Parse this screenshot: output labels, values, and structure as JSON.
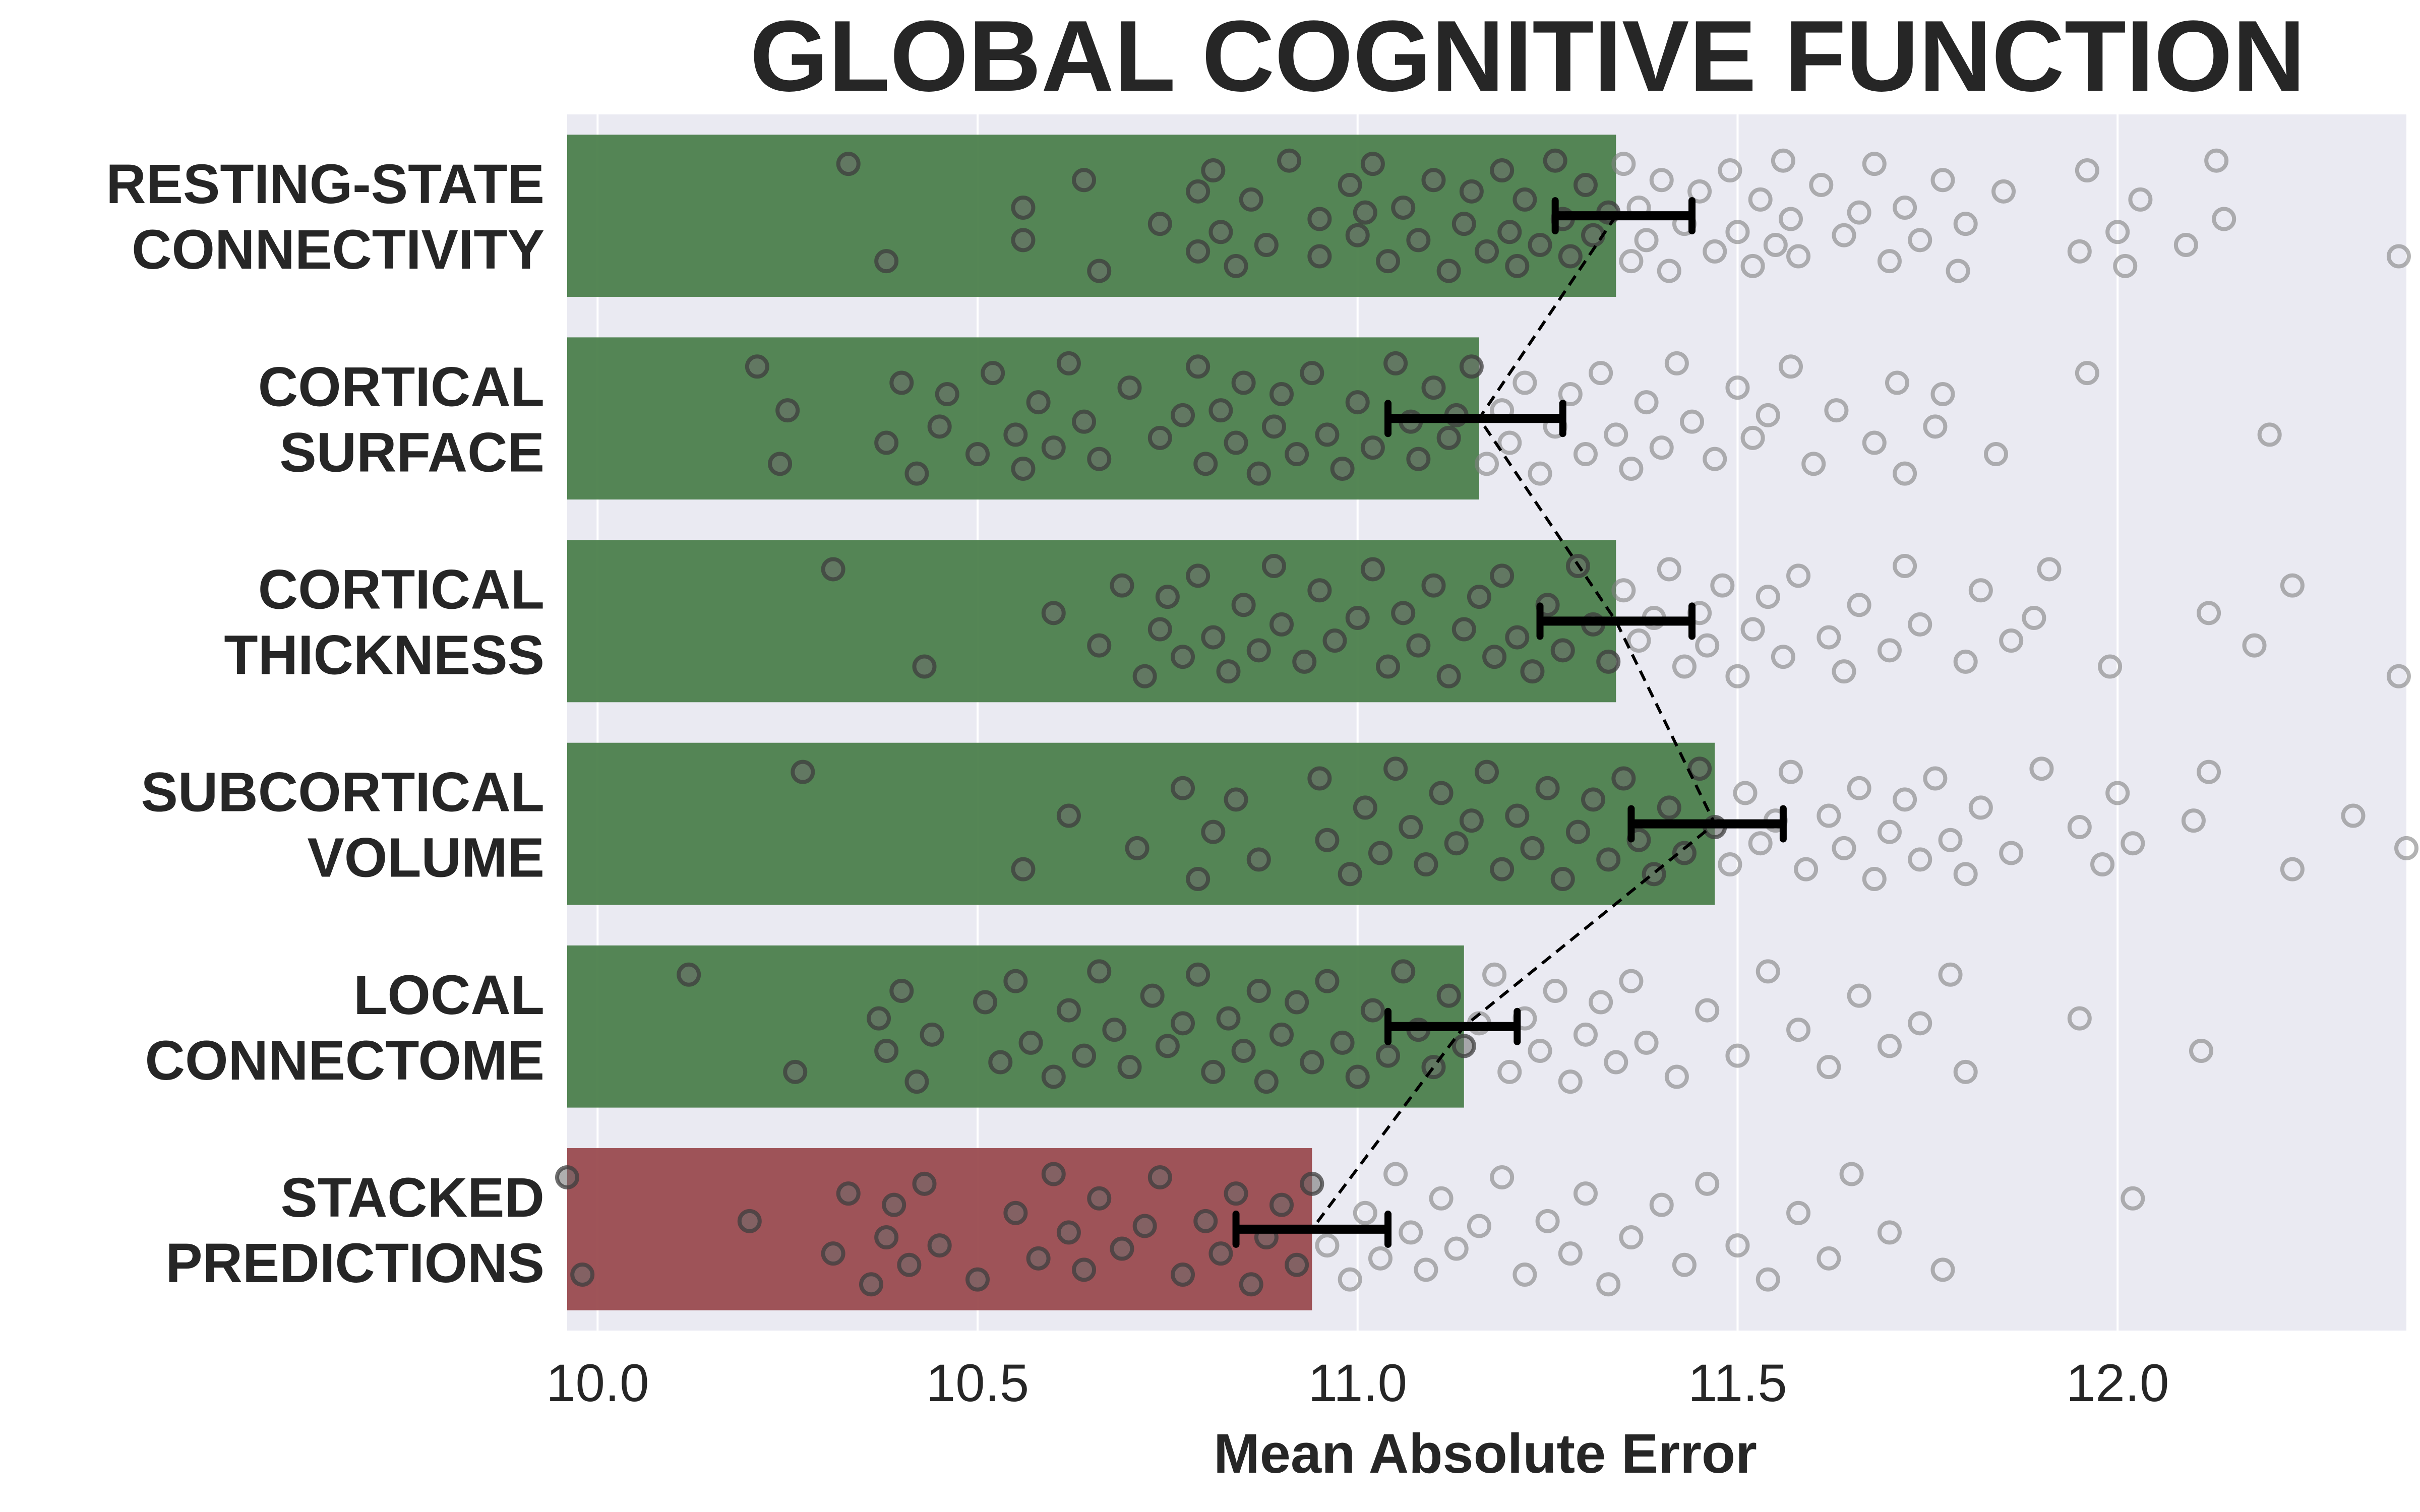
{
  "chart_data": {
    "type": "bar",
    "orientation": "horizontal",
    "title": "GLOBAL COGNITIVE FUNCTION",
    "xlabel": "Mean Absolute Error",
    "ylabel": "",
    "xlim": [
      9.96,
      12.38
    ],
    "xticks": [
      "10.0",
      "10.5",
      "11.0",
      "11.5",
      "12.0"
    ],
    "xtick_values": [
      10.0,
      10.5,
      11.0,
      11.5,
      12.0
    ],
    "grid": true,
    "background": "#eaeaf2",
    "categories": [
      [
        "RESTING-STATE",
        "CONNECTIVITY"
      ],
      [
        "CORTICAL",
        "SURFACE"
      ],
      [
        "CORTICAL",
        "THICKNESS"
      ],
      [
        "SUBCORTICAL",
        "VOLUME"
      ],
      [
        "LOCAL",
        "CONNECTOME"
      ],
      [
        "STACKED",
        "PREDICTIONS"
      ]
    ],
    "values": [
      11.34,
      11.16,
      11.34,
      11.47,
      11.14,
      10.94
    ],
    "bar_colors": [
      "#4c7f4c",
      "#4c7f4c",
      "#4c7f4c",
      "#4c7f4c",
      "#4c7f4c",
      "#9a4b4f"
    ],
    "error_bars": [
      [
        11.26,
        11.44
      ],
      [
        11.04,
        11.27
      ],
      [
        11.24,
        11.44
      ],
      [
        11.36,
        11.56
      ],
      [
        11.04,
        11.21
      ],
      [
        10.84,
        11.04
      ]
    ],
    "error_line_color": "#000000",
    "point_stroke": "#808080",
    "point_stroke_inside": "#3d3d3d",
    "connector": "dashed line joining bar ends",
    "point_offsets": [
      -0.32,
      0.28,
      -0.05,
      0.15,
      -0.22,
      0.34,
      0.05,
      -0.15,
      0.22,
      -0.28,
      0.1,
      0.31,
      -0.1,
      0.18,
      -0.34,
      0.02,
      0.25,
      -0.19,
      0.12,
      -0.02
    ],
    "points": [
      [
        10.33,
        10.38,
        10.56,
        10.56,
        10.64,
        10.66,
        10.74,
        10.79,
        10.79,
        10.81,
        10.82,
        10.84,
        10.86,
        10.88,
        10.91,
        10.95,
        10.95,
        10.99,
        11.0,
        11.01,
        11.02,
        11.04,
        11.06,
        11.08,
        11.1,
        11.12,
        11.14,
        11.15,
        11.17,
        11.19,
        11.2,
        11.21,
        11.22,
        11.24,
        11.26,
        11.27,
        11.28,
        11.3,
        11.31,
        11.33,
        11.35,
        11.36,
        11.37,
        11.38,
        11.4,
        11.41,
        11.43,
        11.45,
        11.47,
        11.49,
        11.5,
        11.52,
        11.53,
        11.55,
        11.56,
        11.57,
        11.58,
        11.61,
        11.64,
        11.66,
        11.68,
        11.7,
        11.72,
        11.74,
        11.77,
        11.79,
        11.8,
        11.85,
        11.95,
        11.96,
        12.0,
        12.01,
        12.03,
        12.09,
        12.13,
        12.14,
        12.37
      ],
      [
        10.21,
        10.24,
        10.25,
        10.38,
        10.4,
        10.42,
        10.45,
        10.46,
        10.5,
        10.52,
        10.55,
        10.56,
        10.58,
        10.6,
        10.62,
        10.64,
        10.66,
        10.7,
        10.74,
        10.77,
        10.79,
        10.8,
        10.82,
        10.84,
        10.85,
        10.87,
        10.89,
        10.9,
        10.92,
        10.94,
        10.96,
        10.98,
        11.0,
        11.02,
        11.05,
        11.07,
        11.08,
        11.1,
        11.12,
        11.13,
        11.15,
        11.17,
        11.19,
        11.2,
        11.22,
        11.24,
        11.26,
        11.28,
        11.3,
        11.32,
        11.34,
        11.36,
        11.38,
        11.4,
        11.42,
        11.44,
        11.47,
        11.5,
        11.52,
        11.54,
        11.57,
        11.6,
        11.63,
        11.68,
        11.71,
        11.72,
        11.76,
        11.77,
        11.84,
        11.96,
        12.2
      ],
      [
        10.31,
        10.43,
        10.6,
        10.66,
        10.69,
        10.72,
        10.74,
        10.75,
        10.77,
        10.79,
        10.81,
        10.83,
        10.85,
        10.87,
        10.89,
        10.9,
        10.93,
        10.95,
        10.97,
        11.0,
        11.02,
        11.04,
        11.06,
        11.08,
        11.1,
        11.12,
        11.14,
        11.16,
        11.18,
        11.19,
        11.21,
        11.23,
        11.25,
        11.27,
        11.29,
        11.31,
        11.33,
        11.35,
        11.37,
        11.39,
        11.41,
        11.43,
        11.45,
        11.46,
        11.48,
        11.5,
        11.52,
        11.54,
        11.56,
        11.58,
        11.62,
        11.64,
        11.66,
        11.7,
        11.72,
        11.74,
        11.8,
        11.82,
        11.86,
        11.89,
        11.91,
        11.99,
        12.12,
        12.18,
        12.23,
        12.37
      ],
      [
        10.27,
        10.56,
        10.62,
        10.71,
        10.77,
        10.79,
        10.81,
        10.84,
        10.87,
        10.95,
        10.96,
        10.99,
        11.01,
        11.03,
        11.05,
        11.07,
        11.09,
        11.11,
        11.13,
        11.15,
        11.17,
        11.19,
        11.21,
        11.23,
        11.25,
        11.27,
        11.29,
        11.31,
        11.33,
        11.35,
        11.37,
        11.39,
        11.41,
        11.43,
        11.45,
        11.47,
        11.49,
        11.51,
        11.53,
        11.55,
        11.57,
        11.59,
        11.62,
        11.64,
        11.66,
        11.68,
        11.7,
        11.72,
        11.74,
        11.76,
        11.78,
        11.8,
        11.82,
        11.86,
        11.9,
        11.95,
        11.98,
        12.0,
        12.02,
        12.1,
        12.12,
        12.23,
        12.31,
        12.38
      ],
      [
        10.12,
        10.26,
        10.37,
        10.38,
        10.4,
        10.42,
        10.44,
        10.51,
        10.53,
        10.55,
        10.57,
        10.6,
        10.62,
        10.64,
        10.66,
        10.68,
        10.7,
        10.73,
        10.75,
        10.77,
        10.79,
        10.81,
        10.83,
        10.85,
        10.87,
        10.88,
        10.9,
        10.92,
        10.94,
        10.96,
        10.98,
        11.0,
        11.02,
        11.04,
        11.06,
        11.08,
        11.1,
        11.12,
        11.14,
        11.16,
        11.18,
        11.2,
        11.22,
        11.24,
        11.26,
        11.28,
        11.3,
        11.32,
        11.34,
        11.36,
        11.38,
        11.42,
        11.46,
        11.5,
        11.54,
        11.58,
        11.62,
        11.66,
        11.7,
        11.74,
        11.78,
        11.8,
        11.95,
        12.11
      ],
      [
        9.96,
        9.98,
        10.2,
        10.31,
        10.33,
        10.36,
        10.38,
        10.39,
        10.41,
        10.43,
        10.45,
        10.5,
        10.55,
        10.58,
        10.6,
        10.62,
        10.64,
        10.66,
        10.69,
        10.72,
        10.74,
        10.77,
        10.8,
        10.82,
        10.84,
        10.86,
        10.88,
        10.9,
        10.92,
        10.94,
        10.96,
        10.99,
        11.01,
        11.03,
        11.05,
        11.07,
        11.09,
        11.11,
        11.13,
        11.16,
        11.19,
        11.22,
        11.25,
        11.28,
        11.3,
        11.33,
        11.36,
        11.4,
        11.43,
        11.46,
        11.5,
        11.54,
        11.58,
        11.62,
        11.65,
        11.7,
        11.77,
        12.02
      ]
    ]
  }
}
